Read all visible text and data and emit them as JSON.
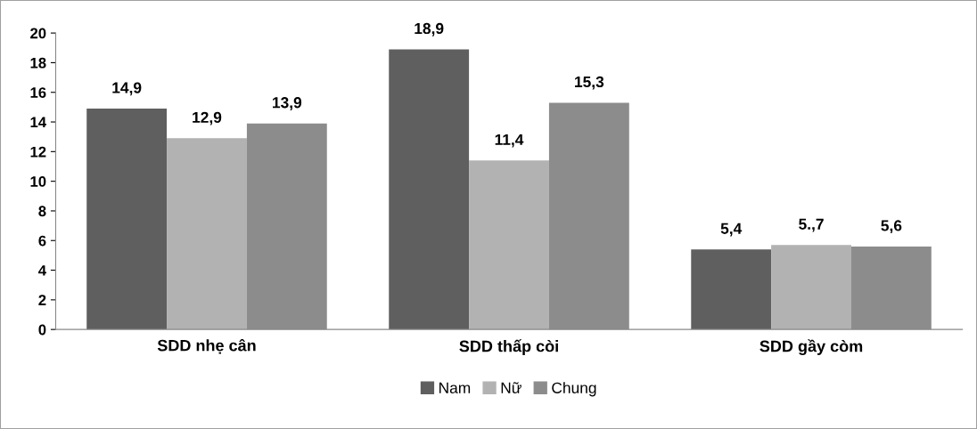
{
  "chart_data": {
    "type": "bar",
    "categories": [
      "SDD nhẹ cân",
      "SDD thấp còi",
      "SDD gầy còm"
    ],
    "series": [
      {
        "name": "Nam",
        "color": "#5f5f5f",
        "values": [
          14.9,
          18.9,
          5.4
        ],
        "value_labels": [
          "14,9",
          "18,9",
          "5,4"
        ]
      },
      {
        "name": "Nữ",
        "color": "#b2b2b2",
        "values": [
          12.9,
          11.4,
          5.7
        ],
        "value_labels": [
          "12,9",
          "11,4",
          "5.,7"
        ]
      },
      {
        "name": "Chung",
        "color": "#8c8c8c",
        "values": [
          13.9,
          15.3,
          5.6
        ],
        "value_labels": [
          "13,9",
          "15,3",
          "5,6"
        ]
      }
    ],
    "ylim": [
      0,
      20
    ],
    "yticks": [
      0,
      2,
      4,
      6,
      8,
      10,
      12,
      14,
      16,
      18,
      20
    ],
    "grid": false,
    "legend": "bottom"
  }
}
